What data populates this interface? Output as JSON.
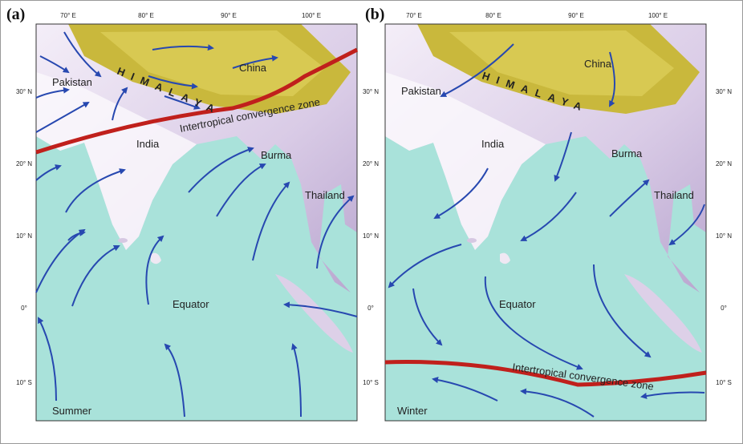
{
  "panels": [
    {
      "label": "(a)",
      "season": "Summer",
      "longitude_labels": [
        "70° E",
        "80° E",
        "90° E",
        "100° E"
      ],
      "latitude_labels": [
        "30° N",
        "20° N",
        "10° N",
        "0°",
        "10° S"
      ],
      "places": {
        "pakistan": "Pakistan",
        "china": "China",
        "india": "India",
        "burma": "Burma",
        "thailand": "Thailand",
        "equator": "Equator",
        "himalaya": "HIMALAYA",
        "itcz": "Intertropical convergence zone"
      }
    },
    {
      "label": "(b)",
      "season": "Winter",
      "longitude_labels": [
        "70° E",
        "80° E",
        "90° E",
        "100° E"
      ],
      "latitude_labels": [
        "30° N",
        "20° N",
        "10° N",
        "0°",
        "10° S"
      ],
      "places": {
        "pakistan": "Pakistan",
        "china": "China",
        "india": "India",
        "burma": "Burma",
        "thailand": "Thailand",
        "equator": "Equator",
        "himalaya": "HIMALAYA",
        "itcz": "Intertropical convergence zone"
      }
    }
  ]
}
